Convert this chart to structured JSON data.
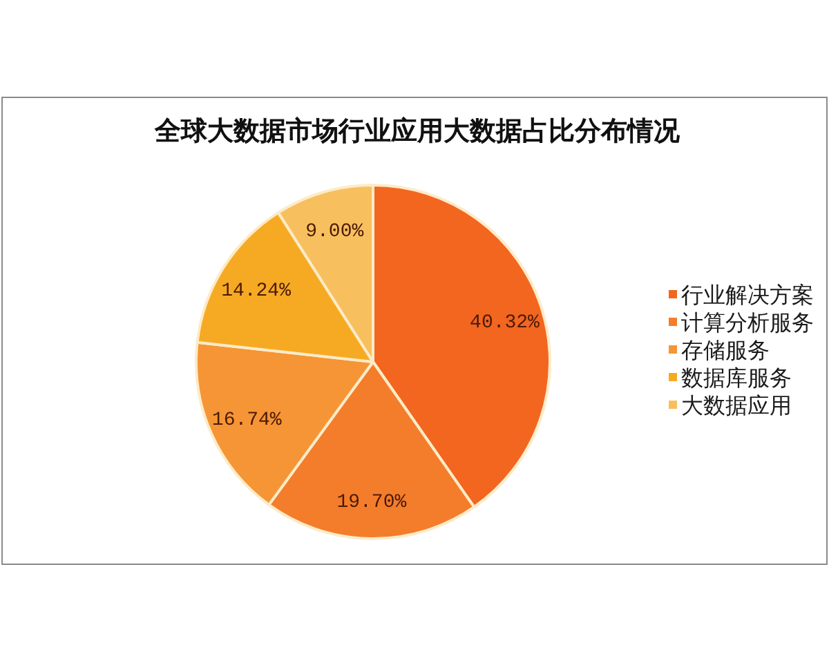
{
  "chart_data": {
    "type": "pie",
    "title": "全球大数据市场行业应用大数据占比分布情况",
    "categories": [
      "行业解决方案",
      "计算分析服务",
      "存储服务",
      "数据库服务",
      "大数据应用"
    ],
    "values": [
      40.32,
      19.7,
      16.74,
      14.24,
      9.0
    ],
    "colors": [
      "#f2661f",
      "#f47d2b",
      "#f59535",
      "#f6aa23",
      "#f8bf5e"
    ],
    "value_labels": [
      "40.32%",
      "19.70%",
      "16.74%",
      "14.24%",
      "9.00%"
    ],
    "legend": "right"
  }
}
